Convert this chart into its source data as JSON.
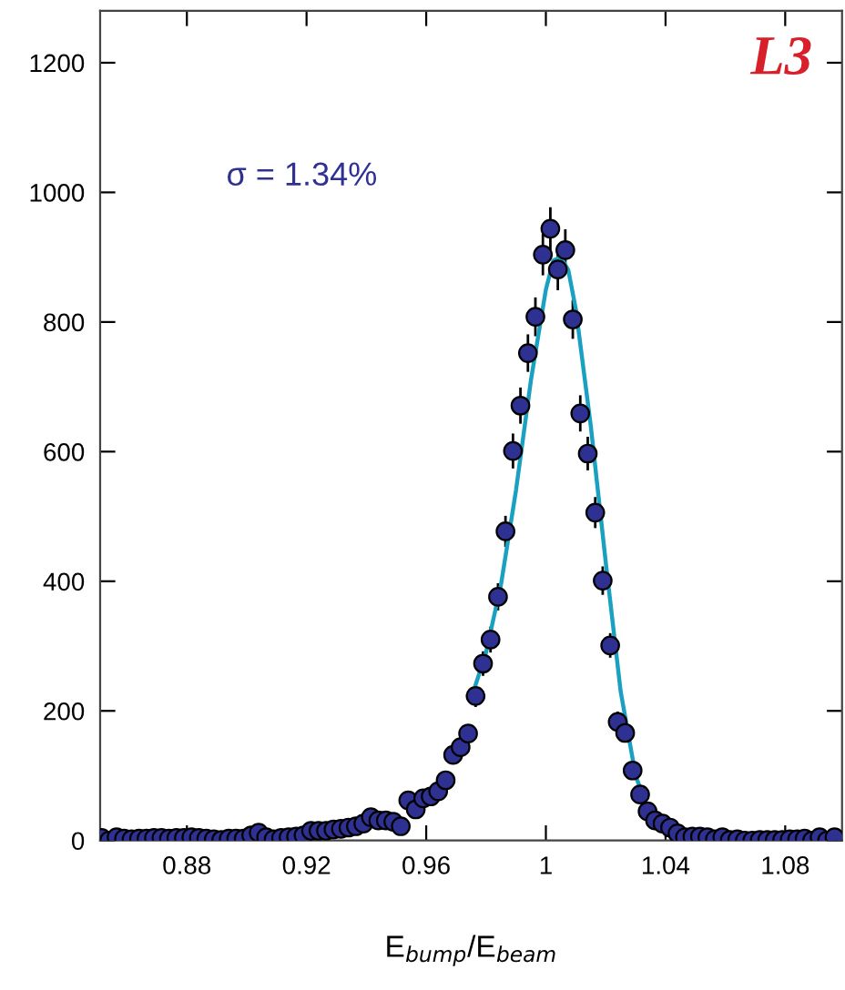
{
  "chart_data": {
    "type": "scatter",
    "xlabel": "E$_{bump}$/E$_{beam}$",
    "annotations": [
      "σ = 1.34%",
      "L3"
    ],
    "xlim": [
      0.851,
      1.099
    ],
    "ylim": [
      0,
      1280
    ],
    "xticks": [
      0.88,
      0.92,
      0.96,
      1,
      1.04,
      1.08
    ],
    "yticks": [
      0,
      200,
      400,
      600,
      800,
      1000,
      1200
    ],
    "grid": false,
    "legend": false,
    "series": [
      {
        "marker": "circle",
        "color": "#2e3192",
        "x": [
          0.8515,
          0.854,
          0.8565,
          0.859,
          0.8615,
          0.864,
          0.8665,
          0.869,
          0.8715,
          0.874,
          0.8765,
          0.879,
          0.8815,
          0.884,
          0.8865,
          0.889,
          0.8915,
          0.894,
          0.8965,
          0.899,
          0.9015,
          0.904,
          0.9065,
          0.909,
          0.9115,
          0.914,
          0.9165,
          0.919,
          0.9215,
          0.924,
          0.9265,
          0.929,
          0.9315,
          0.934,
          0.9365,
          0.939,
          0.9415,
          0.944,
          0.9465,
          0.949,
          0.9515,
          0.954,
          0.9565,
          0.959,
          0.9615,
          0.964,
          0.9665,
          0.969,
          0.9715,
          0.974,
          0.9765,
          0.979,
          0.9815,
          0.984,
          0.9865,
          0.989,
          0.9915,
          0.994,
          0.9965,
          0.999,
          1.0015,
          1.004,
          1.0065,
          1.009,
          1.0115,
          1.014,
          1.0165,
          1.019,
          1.0215,
          1.024,
          1.0265,
          1.029,
          1.0315,
          1.034,
          1.0365,
          1.039,
          1.0415,
          1.044,
          1.0465,
          1.049,
          1.0515,
          1.054,
          1.0565,
          1.059,
          1.0615,
          1.064,
          1.0665,
          1.069,
          1.0715,
          1.074,
          1.0765,
          1.079,
          1.0815,
          1.084,
          1.0865,
          1.089,
          1.0915,
          1.094,
          1.0965
        ],
        "values": [
          4,
          0,
          5,
          3,
          2,
          3,
          3,
          4,
          4,
          3,
          4,
          4,
          5,
          4,
          3,
          2,
          1,
          3,
          3,
          3,
          8,
          12,
          5,
          2,
          4,
          5,
          6,
          8,
          15,
          15,
          15,
          17,
          18,
          20,
          22,
          26,
          36,
          31,
          31,
          29,
          22,
          62,
          48,
          65,
          68,
          76,
          93,
          132,
          144,
          165,
          223,
          273,
          310,
          376,
          477,
          601,
          671,
          752,
          808,
          904,
          944,
          881,
          911,
          804,
          659,
          597,
          506,
          401,
          301,
          183,
          166,
          108,
          71,
          45,
          31,
          26,
          20,
          11,
          5,
          6,
          6,
          5,
          2,
          5,
          1,
          2,
          0,
          0,
          1,
          1,
          1,
          1,
          2,
          2,
          3,
          0,
          5,
          0,
          5
        ],
        "errors": [
          null,
          null,
          null,
          null,
          null,
          null,
          null,
          null,
          null,
          null,
          null,
          null,
          null,
          null,
          null,
          null,
          null,
          null,
          null,
          null,
          null,
          null,
          null,
          null,
          null,
          null,
          null,
          null,
          null,
          null,
          null,
          null,
          null,
          null,
          null,
          null,
          null,
          null,
          null,
          null,
          null,
          null,
          null,
          null,
          null,
          null,
          null,
          null,
          null,
          null,
          15,
          17,
          18,
          19,
          22,
          25,
          26,
          27,
          28,
          30,
          31,
          30,
          30,
          28,
          26,
          24,
          22,
          20,
          17,
          14,
          13,
          null,
          null,
          null,
          null,
          null,
          null,
          null,
          null,
          null,
          null,
          null,
          null,
          null,
          null,
          null,
          null,
          null,
          null,
          null,
          null,
          null,
          null,
          null,
          null,
          null,
          null,
          null,
          null
        ]
      },
      {
        "type": "line",
        "color": "#1aa0c0",
        "x": [
          0.9765,
          0.98,
          0.985,
          0.99,
          0.995,
          1.0,
          1.0025,
          1.005,
          1.0075,
          1.01,
          1.015,
          1.02,
          1.025,
          1.03,
          1.032
        ],
        "values": [
          240,
          290,
          395,
          540,
          710,
          850,
          895,
          900,
          880,
          820,
          640,
          430,
          230,
          100,
          75
        ]
      }
    ]
  }
}
